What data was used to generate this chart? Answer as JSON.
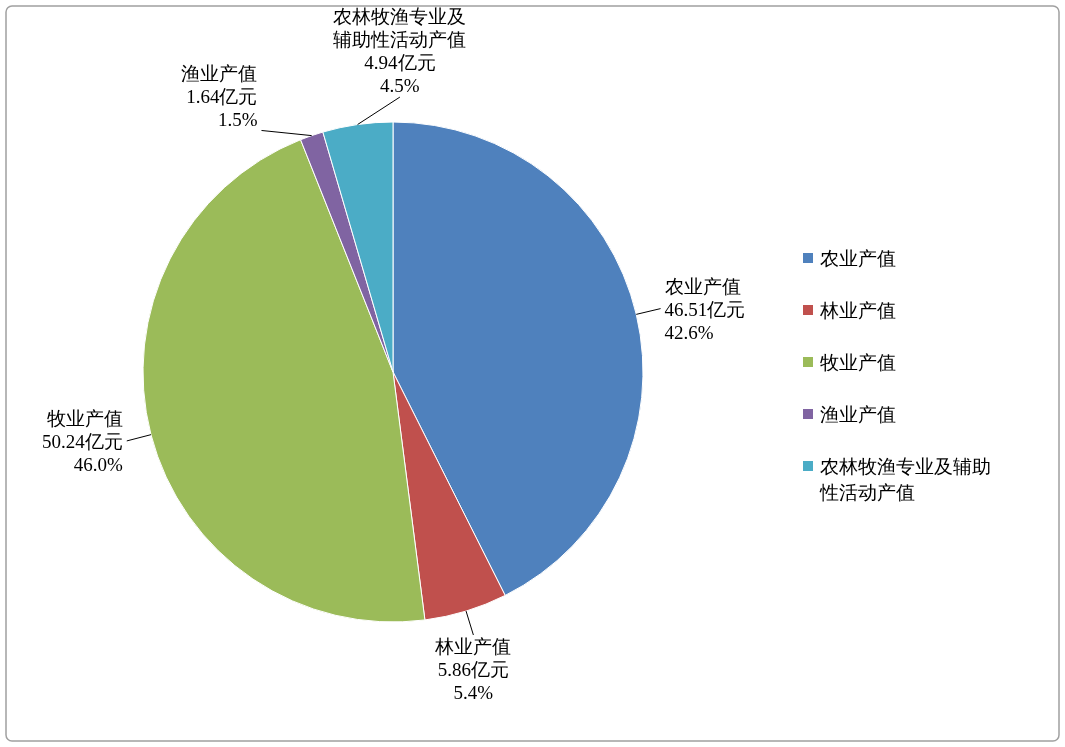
{
  "chart_data": {
    "type": "pie",
    "categories": [
      "农业产值",
      "林业产值",
      "牧业产值",
      "渔业产值",
      "农林牧渔专业及辅助性活动产值"
    ],
    "values": [
      46.51,
      5.86,
      50.24,
      1.64,
      4.94
    ],
    "colors": [
      "#4f81bd",
      "#c0504d",
      "#9bbb59",
      "#8064a2",
      "#4bacc6"
    ],
    "value_labels": [
      "46.51亿元\n42.6%",
      "5.86亿元\n5.4%",
      "50.24亿元\n46.0%",
      "1.64亿元\n1.5%",
      "4.94亿元\n4.5%"
    ],
    "legend": "right"
  }
}
